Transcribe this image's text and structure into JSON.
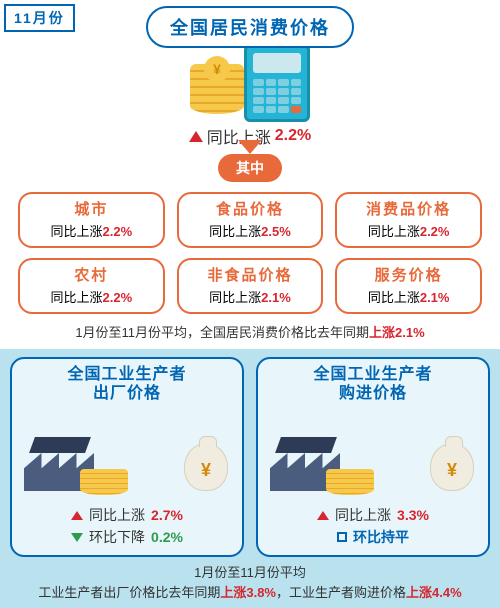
{
  "corner_label": "11月份",
  "main_title": "全国居民消费价格",
  "headline": {
    "prefix": "同比上涨",
    "pct": "2.2%"
  },
  "mid_tag": "其中",
  "categories": [
    {
      "label": "城市",
      "prefix": "同比上涨",
      "pct": "2.2%"
    },
    {
      "label": "食品价格",
      "prefix": "同比上涨",
      "pct": "2.5%"
    },
    {
      "label": "消费品价格",
      "prefix": "同比上涨",
      "pct": "2.2%"
    },
    {
      "label": "农村",
      "prefix": "同比上涨",
      "pct": "2.2%"
    },
    {
      "label": "非食品价格",
      "prefix": "同比上涨",
      "pct": "2.1%"
    },
    {
      "label": "服务价格",
      "prefix": "同比上涨",
      "pct": "2.1%"
    }
  ],
  "summary_top": {
    "a": "1月份至11月份平均，全国居民消费价格比去年同期",
    "b": "上涨2.1%"
  },
  "panels": [
    {
      "title_l1": "全国工业生产者",
      "title_l2": "出厂价格",
      "m1": {
        "prefix": "同比上涨",
        "pct": "2.7%",
        "dir": "up-red"
      },
      "m2": {
        "prefix": "环比下降",
        "pct": "0.2%",
        "dir": "down-green"
      }
    },
    {
      "title_l1": "全国工业生产者",
      "title_l2": "购进价格",
      "m1": {
        "prefix": "同比上涨",
        "pct": "3.3%",
        "dir": "up-red"
      },
      "m2": {
        "prefix": "环比持平",
        "pct": "",
        "dir": "flat-blue"
      }
    }
  ],
  "summary_bottom": {
    "l1": "1月份至11月份平均",
    "l2a": "工业生产者出厂价格比去年同期",
    "l2b": "上涨3.8%",
    "l2c": "，工业生产者购进价格",
    "l2d": "上涨4.4%"
  },
  "colors": {
    "blue": "#0066b3",
    "orange": "#e86a3a",
    "red": "#d7262f",
    "green": "#2e9b4f",
    "panel_bg": "#b9e2ee",
    "gold": "#f7c94b"
  }
}
